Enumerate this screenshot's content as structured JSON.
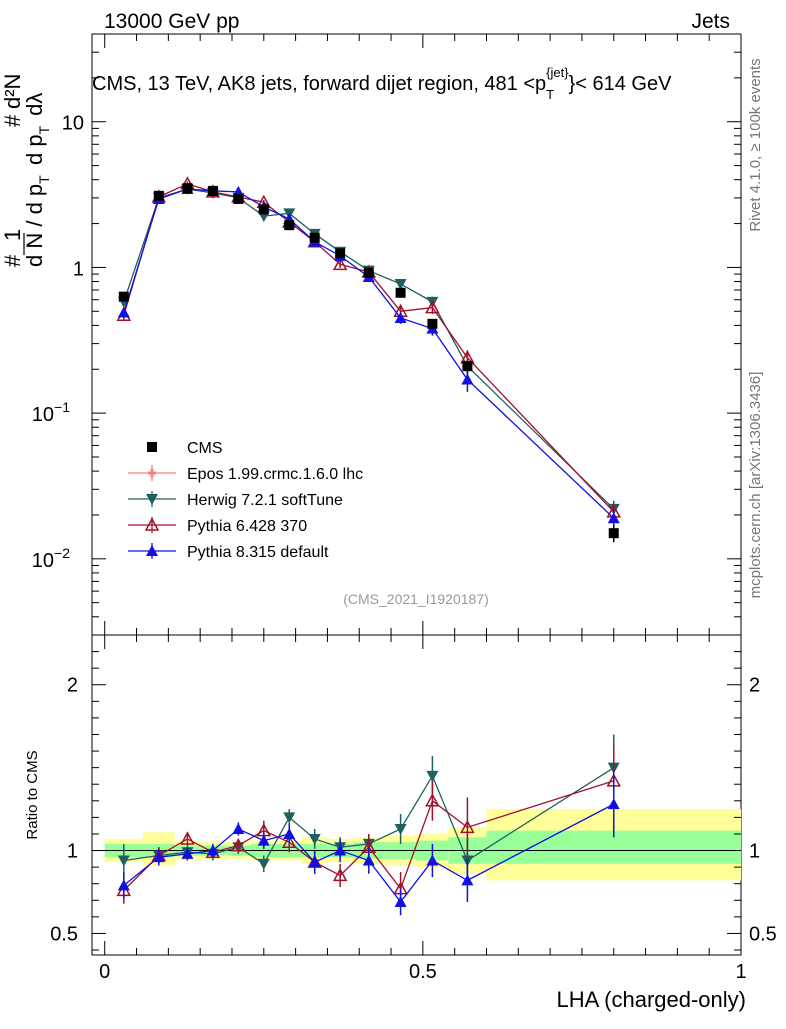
{
  "header": {
    "energy_label": "13000 GeV pp",
    "category_label": "Jets"
  },
  "side_labels": {
    "rivet": "Rivet 4.1.0, ≥ 100k events",
    "mcplots": "mcplots.cern.ch [arXiv:1306.3436]"
  },
  "colors": {
    "CMS": "#000000",
    "Epos": "#f08080",
    "Herwig": "#1e6060",
    "Pythia6": "#a0102a",
    "Pythia8": "#1010e0",
    "band_stat": "#99ff99",
    "band_total": "#ffff99"
  },
  "chart_data": [
    {
      "type": "scatter",
      "panel": "main",
      "title": "CMS, 13 TeV, AK8 jets, forward dijet region, 481 <p_T^{jet}< 614 GeV",
      "title_parts": {
        "pre": "CMS, 13 TeV, AK8 jets, forward dijet region, 481 <p",
        "sup": "{jet}",
        "sub": "T",
        "post": "}< 614 GeV"
      },
      "ylabel": "1/dN/dp_T dN^2/dp_T dλ",
      "ylabel_parts": {
        "hash": "#",
        "one": "1",
        "d_n": "d N / d p",
        "t": "T",
        "d2n": "d²N",
        "dp": "d p",
        "dl": "dλ"
      },
      "xlabel": "LHA (charged-only)",
      "yscale": "log",
      "ylim": [
        0.003,
        40
      ],
      "xlim": [
        -0.02,
        1.0
      ],
      "y_tick_labels": [
        {
          "value": 0.01,
          "base": "10",
          "exp": "−2"
        },
        {
          "value": 0.1,
          "base": "10",
          "exp": "−1"
        },
        {
          "value": 1,
          "base": "1",
          "exp": ""
        },
        {
          "value": 10,
          "base": "10",
          "exp": ""
        }
      ],
      "analysis_id": "(CMS_2021_I1920187)",
      "x": [
        0.03,
        0.085,
        0.13,
        0.17,
        0.21,
        0.25,
        0.29,
        0.33,
        0.37,
        0.415,
        0.465,
        0.515,
        0.57,
        0.8
      ],
      "series": [
        {
          "name": "CMS",
          "key": "CMS",
          "marker": "square",
          "values": [
            0.63,
            3.1,
            3.5,
            3.35,
            2.95,
            2.5,
            1.95,
            1.6,
            1.25,
            0.92,
            0.67,
            0.41,
            0.21,
            0.015
          ],
          "errors": [
            0.04,
            0.12,
            0.12,
            0.12,
            0.1,
            0.1,
            0.08,
            0.07,
            0.06,
            0.05,
            0.04,
            0.03,
            0.02,
            0.002
          ]
        },
        {
          "name": "Epos 1.99.crmc.1.6.0 lhc",
          "key": "Epos",
          "marker": "cross",
          "values": [],
          "errors": []
        },
        {
          "name": "Herwig 7.2.1 softTune",
          "key": "Herwig",
          "marker": "triangle-down",
          "values": [
            0.58,
            3.0,
            3.45,
            3.25,
            3.0,
            2.25,
            2.35,
            1.7,
            1.28,
            0.95,
            0.77,
            0.58,
            0.21,
            0.022
          ],
          "errors": [
            0.04,
            0.12,
            0.12,
            0.12,
            0.1,
            0.1,
            0.1,
            0.08,
            0.06,
            0.05,
            0.05,
            0.05,
            0.03,
            0.003
          ]
        },
        {
          "name": "Pythia 6.428 370",
          "key": "Pythia6",
          "marker": "triangle-up-open",
          "values": [
            0.47,
            3.05,
            3.75,
            3.3,
            3.05,
            2.8,
            2.05,
            1.5,
            1.05,
            0.93,
            0.5,
            0.53,
            0.24,
            0.021
          ],
          "errors": [
            0.04,
            0.12,
            0.14,
            0.12,
            0.1,
            0.1,
            0.09,
            0.07,
            0.06,
            0.05,
            0.05,
            0.05,
            0.03,
            0.003
          ]
        },
        {
          "name": "Pythia 8.315 default",
          "key": "Pythia8",
          "marker": "triangle-up",
          "values": [
            0.49,
            2.95,
            3.45,
            3.35,
            3.3,
            2.6,
            2.15,
            1.5,
            1.2,
            0.86,
            0.45,
            0.38,
            0.17,
            0.019
          ],
          "errors": [
            0.04,
            0.12,
            0.12,
            0.12,
            0.1,
            0.1,
            0.09,
            0.07,
            0.06,
            0.05,
            0.04,
            0.04,
            0.03,
            0.003
          ]
        }
      ]
    },
    {
      "type": "scatter",
      "panel": "ratio",
      "ylabel": "Ratio to CMS",
      "xlabel": "LHA (charged-only)",
      "ylim": [
        0.37,
        2.3
      ],
      "xlim": [
        -0.02,
        1.0
      ],
      "y_ticks": [
        0.5,
        1,
        2
      ],
      "y_tick_labels": [
        "0.5",
        "1",
        "2"
      ],
      "x_ticks": [
        0,
        0.5,
        1
      ],
      "x_tick_labels": [
        "0",
        "0.5",
        "1"
      ],
      "x": [
        0.03,
        0.085,
        0.13,
        0.17,
        0.21,
        0.25,
        0.29,
        0.33,
        0.37,
        0.415,
        0.465,
        0.515,
        0.57,
        0.8
      ],
      "bins": [
        [
          0.0,
          0.06
        ],
        [
          0.06,
          0.11
        ],
        [
          0.11,
          0.15
        ],
        [
          0.15,
          0.19
        ],
        [
          0.19,
          0.23
        ],
        [
          0.23,
          0.27
        ],
        [
          0.27,
          0.31
        ],
        [
          0.31,
          0.35
        ],
        [
          0.35,
          0.39
        ],
        [
          0.39,
          0.44
        ],
        [
          0.44,
          0.49
        ],
        [
          0.49,
          0.54
        ],
        [
          0.54,
          0.6
        ],
        [
          0.6,
          1.0
        ]
      ],
      "band_stat": [
        [
          0.96,
          1.04
        ],
        [
          0.96,
          1.04
        ],
        [
          0.97,
          1.03
        ],
        [
          0.97,
          1.03
        ],
        [
          0.97,
          1.03
        ],
        [
          0.96,
          1.04
        ],
        [
          0.96,
          1.04
        ],
        [
          0.96,
          1.04
        ],
        [
          0.96,
          1.04
        ],
        [
          0.95,
          1.05
        ],
        [
          0.95,
          1.05
        ],
        [
          0.94,
          1.06
        ],
        [
          0.92,
          1.08
        ],
        [
          0.92,
          1.12
        ]
      ],
      "band_total": [
        [
          0.93,
          1.07
        ],
        [
          0.91,
          1.11
        ],
        [
          0.94,
          1.06
        ],
        [
          0.95,
          1.05
        ],
        [
          0.95,
          1.05
        ],
        [
          0.94,
          1.06
        ],
        [
          0.94,
          1.06
        ],
        [
          0.92,
          1.08
        ],
        [
          0.93,
          1.07
        ],
        [
          0.92,
          1.08
        ],
        [
          0.91,
          1.09
        ],
        [
          0.9,
          1.1
        ],
        [
          0.86,
          1.14
        ],
        [
          0.82,
          1.25
        ]
      ],
      "series": [
        {
          "name": "Herwig 7.2.1 softTune",
          "key": "Herwig",
          "marker": "triangle-down",
          "values": [
            0.94,
            0.97,
            0.99,
            0.98,
            1.02,
            0.92,
            1.2,
            1.07,
            1.02,
            1.04,
            1.13,
            1.45,
            0.94,
            1.5
          ],
          "errors": [
            0.1,
            0.05,
            0.04,
            0.04,
            0.04,
            0.05,
            0.05,
            0.06,
            0.06,
            0.06,
            0.09,
            0.12,
            0.14,
            0.2
          ]
        },
        {
          "name": "Pythia 6.428 370",
          "key": "Pythia6",
          "marker": "triangle-up-open",
          "values": [
            0.76,
            0.97,
            1.07,
            0.99,
            1.03,
            1.12,
            1.05,
            0.93,
            0.85,
            1.02,
            0.77,
            1.3,
            1.14,
            1.42
          ],
          "errors": [
            0.08,
            0.05,
            0.04,
            0.04,
            0.04,
            0.06,
            0.06,
            0.07,
            0.07,
            0.08,
            0.1,
            0.12,
            0.18,
            0.22
          ]
        },
        {
          "name": "Pythia 8.315 default",
          "key": "Pythia8",
          "marker": "triangle-up",
          "values": [
            0.79,
            0.96,
            0.98,
            1.0,
            1.13,
            1.06,
            1.1,
            0.93,
            1.0,
            0.94,
            0.69,
            0.94,
            0.82,
            1.28
          ],
          "errors": [
            0.08,
            0.05,
            0.04,
            0.04,
            0.04,
            0.05,
            0.06,
            0.07,
            0.07,
            0.08,
            0.08,
            0.1,
            0.13,
            0.2
          ]
        }
      ]
    }
  ]
}
